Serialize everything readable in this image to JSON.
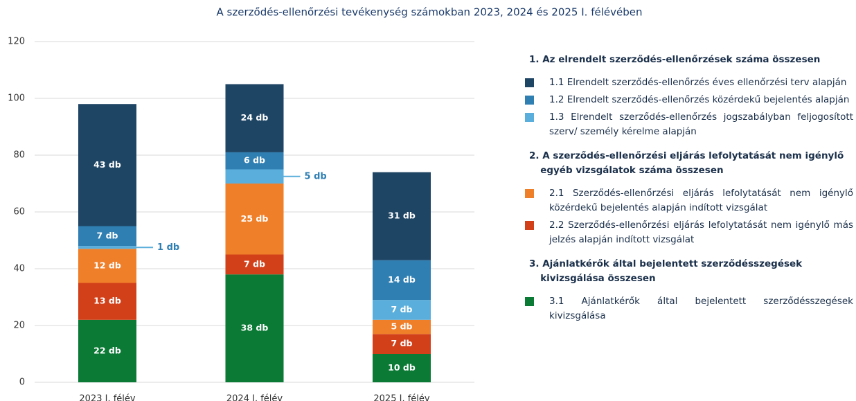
{
  "chart_data": {
    "type": "stacked_bar",
    "title": "A szerződés-ellenőrzési tevékenység számokban 2023, 2024 és 2025 I. félévében",
    "categories": [
      "2023 I. félév",
      "2024 I. félév",
      "2025 I. félév"
    ],
    "ylim": [
      0,
      120
    ],
    "yticks": [
      0,
      20,
      40,
      60,
      80,
      100,
      120
    ],
    "grid": true,
    "legend_groups": [
      {
        "title": "1. Az elrendelt szerződés-ellenőrzések száma összesen"
      },
      {
        "title": "2. A szerződés-ellenőrzési eljárás lefolytatását nem igénylő egyéb vizsgálatok száma összesen"
      },
      {
        "title": "3. Ajánlatkérők által bejelentett szerződésszegések kivizsgálása összesen"
      }
    ],
    "series": [
      {
        "name": "1.1 Elrendelt szerződés-ellenőrzés éves ellenőrzési terv alapján",
        "color": "#1f4565",
        "values": [
          43,
          24,
          31
        ],
        "value_labels": [
          "43 db",
          "24 db",
          "31 db"
        ]
      },
      {
        "name": "1.2 Elrendelt szerződés-ellenőrzés közérdekű bejelentés alapján",
        "color": "#2f7fb3",
        "values": [
          7,
          6,
          14
        ],
        "value_labels": [
          "7 db",
          "6 db",
          "14 db"
        ]
      },
      {
        "name": "1.3 Elrendelt szerződés-ellenőrzés jogszabályban feljogosított szerv/ személy kérelme alapján",
        "color": "#5aaedb",
        "values": [
          1,
          5,
          7
        ],
        "value_labels": [
          "1 db",
          "5 db",
          "7 db"
        ],
        "value_label_outside": [
          true,
          true,
          false
        ]
      },
      {
        "name": "2.1 Szerződés-ellenőrzési eljárás lefolytatását nem igénylő közérdekű bejelentés alapján indított vizsgálat",
        "color": "#f07f2a",
        "values": [
          12,
          25,
          5
        ],
        "value_labels": [
          "12 db",
          "25 db",
          "5 db"
        ]
      },
      {
        "name": "2.2 Szerződés-ellenőrzési eljárás lefolytatását nem igénylő más jelzés alapján indított vizsgálat",
        "color": "#d2401a",
        "values": [
          13,
          7,
          7
        ],
        "value_labels": [
          "13 db",
          "7 db",
          "7 db"
        ]
      },
      {
        "name": "3.1 Ajánlatkérők által bejelentett szerződésszegések kivizsgálása",
        "color": "#0b7a35",
        "values": [
          22,
          38,
          10
        ],
        "value_labels": [
          "22 db",
          "38 db",
          "10 db"
        ]
      }
    ]
  }
}
